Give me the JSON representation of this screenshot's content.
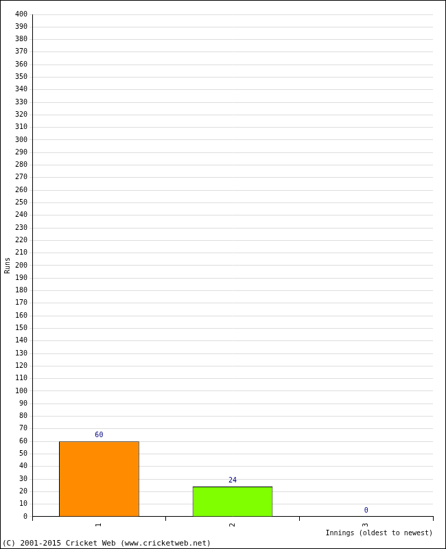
{
  "chart_data": {
    "type": "bar",
    "y_label": "Runs",
    "x_label": "Innings (oldest to newest)",
    "annotation": "(C) 2001-2015 Cricket Web (www.cricketweb.net)",
    "categories": [
      "1",
      "2",
      "3"
    ],
    "values": [
      60,
      24,
      0
    ],
    "colors": [
      "#ff8c00",
      "#80ff00",
      "#ff0000"
    ],
    "ylim": [
      0,
      400
    ],
    "yticks": [
      0,
      10,
      20,
      30,
      40,
      50,
      60,
      70,
      80,
      90,
      100,
      110,
      120,
      130,
      140,
      150,
      160,
      170,
      180,
      190,
      200,
      210,
      220,
      230,
      240,
      250,
      260,
      270,
      280,
      290,
      300,
      310,
      320,
      330,
      340,
      350,
      360,
      370,
      380,
      390,
      400
    ],
    "grid": true,
    "data_labels": true
  }
}
